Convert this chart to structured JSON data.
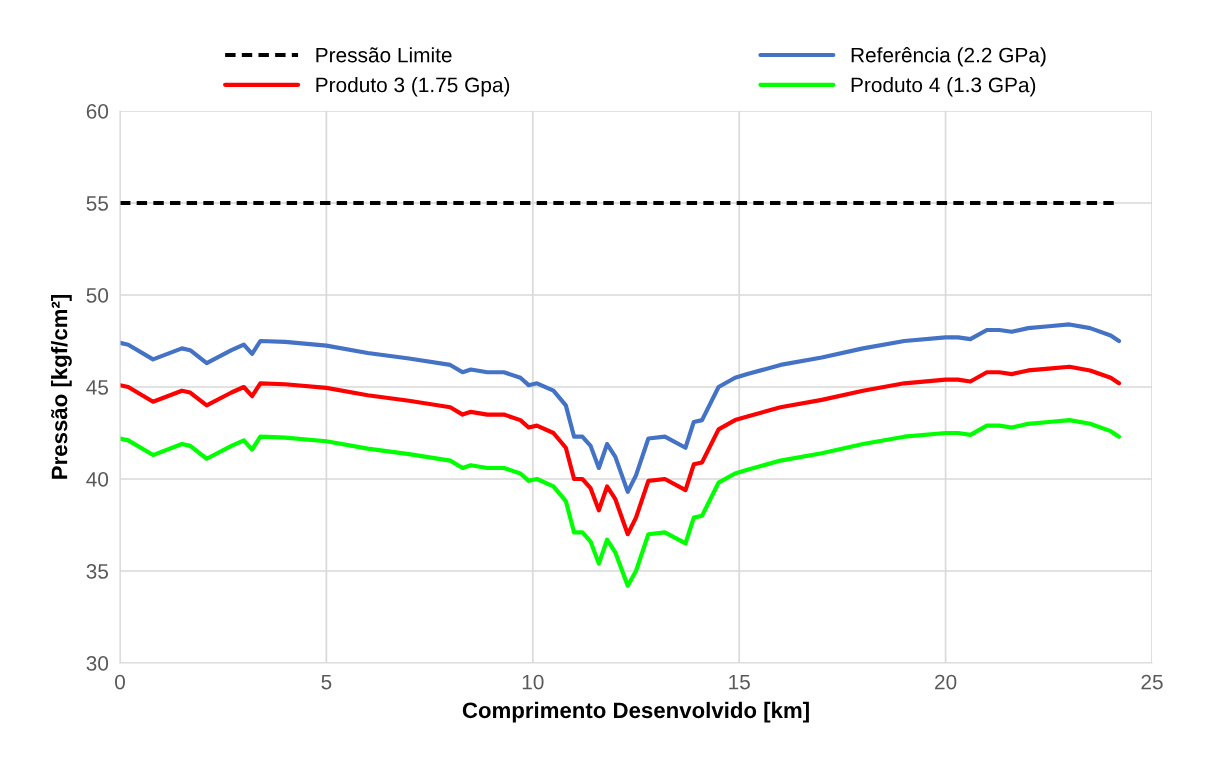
{
  "chart_data": {
    "type": "line",
    "xlabel": "Comprimento Desenvolvido [km]",
    "ylabel": "Pressão [kgf/cm²]",
    "x": [
      0,
      0.2,
      0.8,
      1.5,
      1.7,
      2.1,
      2.7,
      3.0,
      3.2,
      3.4,
      4.0,
      5,
      6,
      7,
      8,
      8.3,
      8.5,
      8.9,
      9.3,
      9.7,
      9.9,
      10.1,
      10.5,
      10.8,
      11,
      11.2,
      11.4,
      11.6,
      11.8,
      12.0,
      12.3,
      12.5,
      12.8,
      13.2,
      13.7,
      13.9,
      14.1,
      14.5,
      14.9,
      15.2,
      16,
      17,
      18,
      19,
      20,
      20.3,
      20.6,
      21,
      21.3,
      21.6,
      22,
      22.5,
      23,
      23.5,
      24,
      24.2
    ],
    "series": [
      {
        "name": "Pressão Limite",
        "color": "#000000",
        "line_style": "dashed",
        "x": [
          0,
          24.2
        ],
        "values": [
          55,
          55
        ]
      },
      {
        "name": "Referência (2.2 GPa)",
        "color": "#4472c4",
        "line_style": "solid",
        "values": [
          47.4,
          47.3,
          46.5,
          47.1,
          47.0,
          46.3,
          47.0,
          47.3,
          46.8,
          47.5,
          47.45,
          47.25,
          46.85,
          46.55,
          46.2,
          45.8,
          45.95,
          45.8,
          45.8,
          45.5,
          45.1,
          45.2,
          44.8,
          44.0,
          42.3,
          42.3,
          41.8,
          40.6,
          41.9,
          41.2,
          39.3,
          40.2,
          42.2,
          42.3,
          41.7,
          43.1,
          43.2,
          45.0,
          45.5,
          45.7,
          46.2,
          46.6,
          47.1,
          47.5,
          47.7,
          47.7,
          47.6,
          48.1,
          48.1,
          48.0,
          48.2,
          48.3,
          48.4,
          48.2,
          47.8,
          47.5
        ]
      },
      {
        "name": "Produto 3 (1.75 Gpa)",
        "color": "#ff0000",
        "line_style": "solid",
        "values": [
          45.1,
          45.0,
          44.2,
          44.8,
          44.7,
          44.0,
          44.7,
          45.0,
          44.5,
          45.2,
          45.15,
          44.95,
          44.55,
          44.25,
          43.9,
          43.5,
          43.65,
          43.5,
          43.5,
          43.2,
          42.8,
          42.9,
          42.5,
          41.7,
          40.0,
          40.0,
          39.5,
          38.3,
          39.6,
          38.9,
          37.0,
          37.9,
          39.9,
          40.0,
          39.4,
          40.8,
          40.9,
          42.7,
          43.2,
          43.4,
          43.9,
          44.3,
          44.8,
          45.2,
          45.4,
          45.4,
          45.3,
          45.8,
          45.8,
          45.7,
          45.9,
          46.0,
          46.1,
          45.9,
          45.5,
          45.2
        ]
      },
      {
        "name": "Produto 4 (1.3 GPa)",
        "color": "#00ff00",
        "line_style": "solid",
        "values": [
          42.2,
          42.1,
          41.3,
          41.9,
          41.8,
          41.1,
          41.8,
          42.1,
          41.6,
          42.3,
          42.25,
          42.05,
          41.65,
          41.35,
          41.0,
          40.6,
          40.75,
          40.6,
          40.6,
          40.3,
          39.9,
          40.0,
          39.6,
          38.8,
          37.1,
          37.1,
          36.6,
          35.4,
          36.7,
          36.0,
          34.2,
          35.0,
          37.0,
          37.1,
          36.5,
          37.9,
          38.0,
          39.8,
          40.3,
          40.5,
          41.0,
          41.4,
          41.9,
          42.3,
          42.5,
          42.5,
          42.4,
          42.9,
          42.9,
          42.8,
          43.0,
          43.1,
          43.2,
          43.0,
          42.6,
          42.3
        ]
      }
    ],
    "xlim": [
      0,
      25
    ],
    "xticks": [
      0,
      5,
      10,
      15,
      20,
      25
    ],
    "ylim": [
      30,
      60
    ],
    "yticks": [
      30,
      35,
      40,
      45,
      50,
      55,
      60
    ],
    "grid": true,
    "legend": "top",
    "marker": "none"
  }
}
